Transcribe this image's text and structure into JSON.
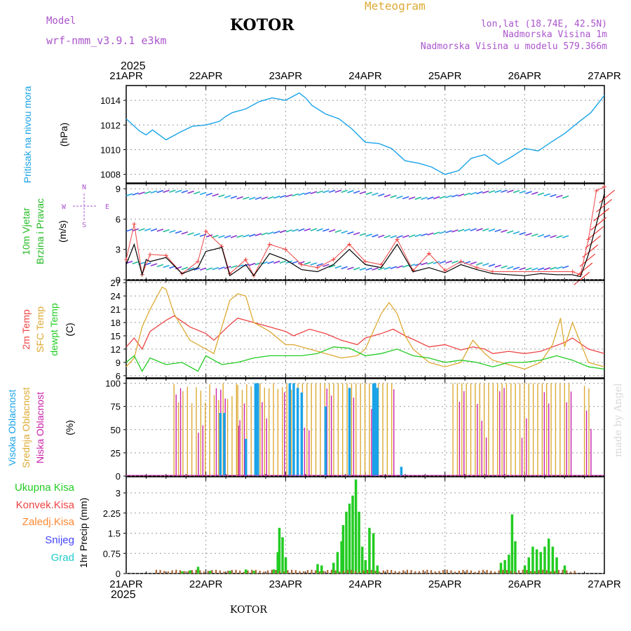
{
  "header": {
    "model_label": "Model",
    "model_name": "wrf-nmm_v3.9.1  e3km",
    "station": "KOTOR",
    "meteogram_label": "Meteogram",
    "lonlat": "lon,lat (18.74E, 42.5N)",
    "elevation": "Nadmorska Visina 1m",
    "model_elevation": "Nadmorska Visina u modelu 579.366m",
    "year": "2025",
    "footer_station": "KOTOR",
    "watermark": "made by Angel"
  },
  "colors": {
    "pressure": "#1aa3e8",
    "wind_title": "#22bb22",
    "wind_sub": "#22bb22",
    "temp2m": "#ee4444",
    "sfc": "#ddaa33",
    "dew": "#22cc22",
    "high_cloud": "#1aa3e8",
    "mid_cloud": "#ddaa33",
    "low_cloud": "#cc22aa",
    "precip_total": "#22cc22",
    "precip_conv": "#ee4444",
    "precip_frozen": "#ff8833",
    "snow": "#4444ff",
    "hail": "#22cccc",
    "purple": "#aa55cc"
  },
  "x_ticks": [
    "21APR",
    "22APR",
    "23APR",
    "24APR",
    "25APR",
    "26APR",
    "27APR"
  ],
  "compass": {
    "n": "N",
    "s": "S",
    "w": "W",
    "e": "E"
  },
  "chart_data": [
    {
      "type": "line",
      "title": "Pritisak na nivou mora",
      "ylabel": "(hPa)",
      "ylim": [
        1007.3,
        1015.2
      ],
      "yticks": [
        1008,
        1010,
        1012,
        1014
      ],
      "xlim_days": [
        0,
        6
      ],
      "series": [
        {
          "name": "MSLP",
          "x_days": [
            0,
            0.17,
            0.25,
            0.33,
            0.5,
            0.67,
            0.83,
            1,
            1.17,
            1.25,
            1.33,
            1.5,
            1.67,
            1.83,
            2,
            2.17,
            2.25,
            2.33,
            2.5,
            2.67,
            2.83,
            3,
            3.17,
            3.33,
            3.5,
            3.67,
            3.83,
            4,
            4.17,
            4.33,
            4.5,
            4.67,
            4.83,
            5,
            5.17,
            5.33,
            5.5,
            5.67,
            5.83,
            6
          ],
          "values": [
            1012.5,
            1011.5,
            1011.2,
            1011.6,
            1010.8,
            1011.4,
            1011.9,
            1012.0,
            1012.3,
            1012.7,
            1013.0,
            1013.3,
            1013.9,
            1014.2,
            1014.0,
            1014.6,
            1014.2,
            1013.6,
            1012.9,
            1012.5,
            1011.7,
            1010.6,
            1010.5,
            1010.1,
            1009.1,
            1008.9,
            1008.6,
            1008.0,
            1008.3,
            1009.3,
            1009.6,
            1008.8,
            1009.4,
            1010.1,
            1009.9,
            1010.6,
            1011.3,
            1012.2,
            1013.0,
            1014.4
          ]
        }
      ]
    },
    {
      "type": "line",
      "title": "10m Vjetar",
      "subtitle": "Brzina i Pravac",
      "ylabel": "(m/s)",
      "ylim": [
        0,
        9.5
      ],
      "yticks": [
        0,
        3,
        6,
        9
      ],
      "series": [
        {
          "name": "speed",
          "x_days": [
            0,
            0.1,
            0.2,
            0.25,
            0.3,
            0.5,
            0.7,
            0.9,
            1,
            1.2,
            1.3,
            1.5,
            1.6,
            1.8,
            2,
            2.2,
            2.4,
            2.6,
            2.8,
            3,
            3.2,
            3.4,
            3.6,
            3.8,
            4,
            4.2,
            4.4,
            4.6,
            4.8,
            5,
            5.2,
            5.4,
            5.6,
            5.7,
            5.8,
            5.9,
            6
          ],
          "values": [
            1.5,
            3.5,
            0.5,
            2,
            1.8,
            2.2,
            0.6,
            1.2,
            2.8,
            3.2,
            0.4,
            1.5,
            0.4,
            2.6,
            2.0,
            1.0,
            0.8,
            1.5,
            3.0,
            1.5,
            1.2,
            3.5,
            0.8,
            1.2,
            0.7,
            1.5,
            1.0,
            0.6,
            0.5,
            0.4,
            0.6,
            0.5,
            0.5,
            0.3,
            2.5,
            5.5,
            8.5
          ]
        },
        {
          "name": "gust",
          "x_days": [
            0,
            0.1,
            0.2,
            0.3,
            0.5,
            0.7,
            0.9,
            1,
            1.2,
            1.3,
            1.5,
            1.6,
            1.8,
            2,
            2.2,
            2.4,
            2.6,
            2.8,
            3,
            3.2,
            3.4,
            3.6,
            3.8,
            4,
            4.2,
            4.4,
            4.6,
            5.6,
            5.7,
            5.8,
            5.9,
            6
          ],
          "values": [
            2,
            5.5,
            0.5,
            2.5,
            2.4,
            0.6,
            1.8,
            4.8,
            3.3,
            0.6,
            2,
            0.4,
            3.5,
            3.0,
            1.5,
            1.2,
            2.0,
            3.5,
            1.8,
            1.5,
            4.0,
            0.9,
            2.6,
            0.9,
            1.8,
            1.2,
            0.8,
            0.8,
            0.5,
            4.0,
            8.8,
            9.2
          ]
        }
      ]
    },
    {
      "type": "line",
      "title": "2m Temp",
      "ylabel": "(C)",
      "ylim": [
        5.5,
        27.5
      ],
      "yticks": [
        6,
        9,
        12,
        15,
        18,
        21,
        24,
        27
      ],
      "series": [
        {
          "name": "2m Temp",
          "x_days": [
            0,
            0.1,
            0.2,
            0.3,
            0.5,
            0.6,
            0.8,
            1,
            1.1,
            1.3,
            1.4,
            1.6,
            1.8,
            2,
            2.1,
            2.3,
            2.5,
            2.7,
            2.9,
            3,
            3.2,
            3.35,
            3.5,
            3.6,
            3.8,
            4,
            4.2,
            4.35,
            4.5,
            4.6,
            4.8,
            5,
            5.2,
            5.35,
            5.5,
            5.6,
            5.8,
            6
          ],
          "values": [
            12.5,
            14.5,
            12,
            16,
            18.5,
            19.5,
            17,
            15.5,
            14,
            17.5,
            19,
            18,
            17,
            16,
            15,
            16.5,
            15.5,
            14,
            13,
            14.5,
            15.5,
            16.5,
            15,
            14.2,
            12.5,
            13,
            11.8,
            12.5,
            12,
            11,
            11.5,
            11,
            11.5,
            12.5,
            13.5,
            14.5,
            12,
            11
          ]
        },
        {
          "name": "SFC Temp",
          "x_days": [
            0,
            0.1,
            0.2,
            0.3,
            0.45,
            0.5,
            0.6,
            0.8,
            1,
            1.1,
            1.3,
            1.4,
            1.5,
            1.6,
            1.8,
            2,
            2.1,
            2.3,
            2.5,
            2.7,
            2.9,
            3,
            3.2,
            3.3,
            3.4,
            3.5,
            3.6,
            3.8,
            4,
            4.2,
            4.35,
            4.5,
            4.6,
            4.8,
            5,
            5.2,
            5.35,
            5.45,
            5.5,
            5.6,
            5.8,
            6
          ],
          "values": [
            8,
            10,
            17,
            21,
            26,
            25.5,
            20,
            14,
            12,
            11,
            23,
            24.5,
            24,
            18,
            16,
            13,
            13,
            12,
            11,
            10,
            10.5,
            12,
            20,
            22.5,
            20,
            15,
            12,
            9,
            8,
            9,
            14,
            11,
            9.5,
            8.5,
            7.5,
            9,
            13,
            19,
            12.5,
            18,
            9,
            8
          ]
        },
        {
          "name": "dewpt Temp",
          "x_days": [
            0,
            0.1,
            0.2,
            0.3,
            0.5,
            0.7,
            0.9,
            1,
            1.2,
            1.4,
            1.6,
            1.8,
            2,
            2.2,
            2.4,
            2.6,
            2.8,
            3,
            3.2,
            3.4,
            3.6,
            3.8,
            4,
            4.2,
            4.4,
            4.6,
            4.8,
            5,
            5.2,
            5.4,
            5.6,
            5.8,
            6
          ],
          "values": [
            9,
            10.5,
            7,
            10,
            8.5,
            9,
            7,
            10.5,
            8.5,
            9,
            10,
            10.5,
            10.5,
            10.5,
            11,
            12.5,
            12.2,
            10.5,
            11,
            12,
            10.5,
            10,
            9,
            9.5,
            9,
            8,
            9,
            9,
            9.5,
            10.5,
            9.5,
            8,
            7.5
          ]
        }
      ]
    },
    {
      "type": "bar",
      "title": "Visoka Oblacnost",
      "subtitle_mid": "Srednja Oblacnost",
      "subtitle_low": "Niska Oblacnost",
      "ylabel": "(%)",
      "ylim": [
        0,
        105
      ],
      "yticks": [
        0,
        25,
        50,
        75,
        100
      ]
    },
    {
      "type": "bar",
      "title": "Ukupna Kisa",
      "legend": [
        "Ukupna Kisa",
        "Konvek.Kisa",
        "Zaledj.Kisa",
        "Snijeg",
        "Grad"
      ],
      "ylabel": "1hr Precip (mm)",
      "ylim": [
        0,
        3.6
      ],
      "yticks": [
        0,
        0.75,
        1.5,
        2.25,
        3
      ],
      "ytick_labels": [
        "0",
        "0.75",
        "1.5",
        "2.25",
        "3"
      ]
    }
  ]
}
